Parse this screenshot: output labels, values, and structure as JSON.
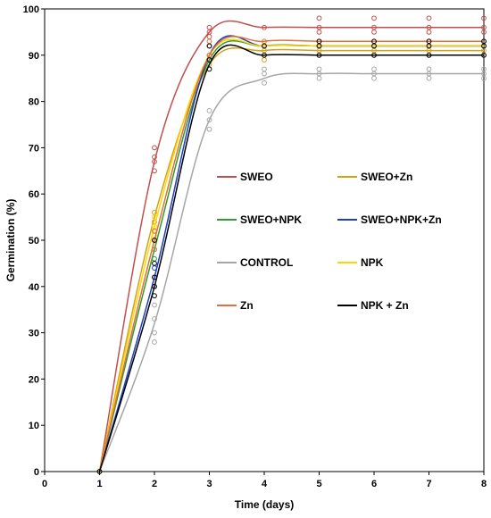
{
  "chart_data": {
    "type": "line",
    "title": "",
    "xlabel": "Time (days)",
    "ylabel": "Germination (%)",
    "xlim": [
      0,
      8
    ],
    "ylim": [
      0,
      100
    ],
    "x_ticks": [
      "0",
      "1",
      "2",
      "3",
      "4",
      "5",
      "6",
      "7",
      "8"
    ],
    "y_ticks": [
      "0",
      "10",
      "20",
      "30",
      "40",
      "50",
      "60",
      "70",
      "80",
      "90",
      "100"
    ],
    "grid": false,
    "legend_position": "center-right",
    "x": [
      1,
      2,
      3,
      4,
      5,
      6,
      7,
      8
    ],
    "series": [
      {
        "name": "SWEO",
        "color": "#c0504d",
        "values": [
          0,
          67,
          95,
          96,
          96,
          96,
          96,
          96
        ],
        "points": [
          [
            1,
            0
          ],
          [
            2,
            65
          ],
          [
            2,
            67
          ],
          [
            2,
            68
          ],
          [
            2,
            70
          ],
          [
            3,
            94
          ],
          [
            3,
            95
          ],
          [
            3,
            96
          ],
          [
            4,
            96
          ],
          [
            5,
            95
          ],
          [
            5,
            96
          ],
          [
            5,
            98
          ],
          [
            6,
            95
          ],
          [
            6,
            96
          ],
          [
            6,
            98
          ],
          [
            7,
            95
          ],
          [
            7,
            96
          ],
          [
            7,
            98
          ],
          [
            8,
            95
          ],
          [
            8,
            96
          ],
          [
            8,
            98
          ]
        ]
      },
      {
        "name": "SWEO+Zn",
        "color": "#d4a017",
        "values": [
          0,
          55,
          88,
          91,
          91,
          91,
          91,
          91
        ],
        "points": [
          [
            1,
            0
          ],
          [
            2,
            52
          ],
          [
            2,
            54
          ],
          [
            2,
            56
          ],
          [
            3,
            88
          ],
          [
            3,
            90
          ],
          [
            4,
            89
          ],
          [
            4,
            91
          ],
          [
            5,
            90
          ],
          [
            5,
            91
          ],
          [
            6,
            90
          ],
          [
            6,
            91
          ],
          [
            7,
            90
          ],
          [
            7,
            91
          ],
          [
            8,
            90
          ],
          [
            8,
            91
          ]
        ]
      },
      {
        "name": "SWEO+NPK",
        "color": "#339933",
        "values": [
          0,
          48,
          89,
          92,
          92,
          92,
          92,
          92
        ],
        "points": [
          [
            1,
            0
          ],
          [
            2,
            46
          ],
          [
            2,
            48
          ],
          [
            2,
            50
          ],
          [
            3,
            89
          ],
          [
            3,
            92
          ],
          [
            4,
            92
          ],
          [
            5,
            92
          ],
          [
            6,
            92
          ],
          [
            7,
            92
          ],
          [
            8,
            92
          ]
        ]
      },
      {
        "name": "SWEO+NPK+Zn",
        "color": "#1f3fbf",
        "values": [
          0,
          42,
          90,
          92,
          92,
          92,
          92,
          92
        ],
        "points": [
          [
            1,
            0
          ],
          [
            2,
            40
          ],
          [
            2,
            42
          ],
          [
            2,
            44
          ],
          [
            3,
            90
          ],
          [
            3,
            92
          ],
          [
            4,
            92
          ],
          [
            5,
            92
          ],
          [
            6,
            92
          ],
          [
            7,
            92
          ],
          [
            8,
            92
          ]
        ]
      },
      {
        "name": "CONTROL",
        "color": "#a6a6a6",
        "values": [
          0,
          32,
          76,
          85,
          86,
          86,
          86,
          86
        ],
        "points": [
          [
            1,
            0
          ],
          [
            2,
            28
          ],
          [
            2,
            30
          ],
          [
            2,
            33
          ],
          [
            2,
            36
          ],
          [
            3,
            74
          ],
          [
            3,
            76
          ],
          [
            3,
            78
          ],
          [
            4,
            84
          ],
          [
            4,
            86
          ],
          [
            4,
            87
          ],
          [
            5,
            85
          ],
          [
            5,
            86
          ],
          [
            5,
            87
          ],
          [
            6,
            85
          ],
          [
            6,
            86
          ],
          [
            6,
            87
          ],
          [
            7,
            85
          ],
          [
            7,
            86
          ],
          [
            7,
            87
          ],
          [
            8,
            85
          ],
          [
            8,
            86
          ],
          [
            8,
            87
          ]
        ]
      },
      {
        "name": "NPK",
        "color": "#ffd700",
        "values": [
          0,
          53,
          90,
          92,
          92,
          92,
          92,
          92
        ],
        "points": [
          [
            1,
            0
          ],
          [
            2,
            51
          ],
          [
            2,
            53
          ],
          [
            2,
            55
          ],
          [
            3,
            90
          ],
          [
            3,
            92
          ],
          [
            4,
            92
          ],
          [
            5,
            92
          ],
          [
            6,
            92
          ],
          [
            7,
            92
          ],
          [
            8,
            92
          ]
        ]
      },
      {
        "name": "Zn",
        "color": "#e2703a",
        "values": [
          0,
          50,
          90,
          93,
          93,
          93,
          93,
          93
        ],
        "points": [
          [
            1,
            0
          ],
          [
            2,
            48
          ],
          [
            2,
            50
          ],
          [
            2,
            52
          ],
          [
            3,
            90
          ],
          [
            3,
            93
          ],
          [
            4,
            93
          ],
          [
            5,
            93
          ],
          [
            6,
            93
          ],
          [
            7,
            93
          ],
          [
            8,
            93
          ]
        ]
      },
      {
        "name": "NPK + Zn",
        "color": "#000000",
        "values": [
          0,
          40,
          88,
          90,
          90,
          90,
          90,
          90
        ],
        "points": [
          [
            1,
            0
          ],
          [
            2,
            38
          ],
          [
            2,
            40
          ],
          [
            2,
            42
          ],
          [
            2,
            45
          ],
          [
            2,
            50
          ],
          [
            3,
            87
          ],
          [
            3,
            89
          ],
          [
            3,
            92
          ],
          [
            4,
            90
          ],
          [
            4,
            92
          ],
          [
            5,
            90
          ],
          [
            5,
            92
          ],
          [
            5,
            93
          ],
          [
            6,
            90
          ],
          [
            6,
            92
          ],
          [
            6,
            93
          ],
          [
            7,
            90
          ],
          [
            7,
            92
          ],
          [
            7,
            93
          ],
          [
            8,
            90
          ],
          [
            8,
            92
          ],
          [
            8,
            93
          ]
        ]
      }
    ]
  }
}
